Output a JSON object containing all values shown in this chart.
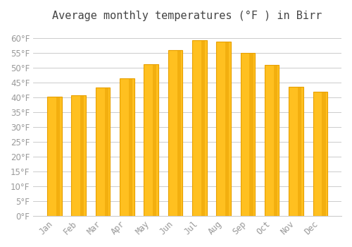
{
  "title": "Average monthly temperatures (°F ) in Birr",
  "months": [
    "Jan",
    "Feb",
    "Mar",
    "Apr",
    "May",
    "Jun",
    "Jul",
    "Aug",
    "Sep",
    "Oct",
    "Nov",
    "Dec"
  ],
  "values": [
    40.1,
    40.6,
    43.3,
    46.4,
    51.1,
    55.9,
    59.2,
    58.6,
    54.9,
    50.9,
    43.5,
    41.9
  ],
  "bar_color": "#FFC020",
  "bar_edge_color": "#E8A000",
  "background_color": "#FFFFFF",
  "grid_color": "#CCCCCC",
  "text_color": "#999999",
  "ylim": [
    0,
    63
  ],
  "yticks": [
    0,
    5,
    10,
    15,
    20,
    25,
    30,
    35,
    40,
    45,
    50,
    55,
    60
  ],
  "title_fontsize": 11,
  "tick_fontsize": 8.5,
  "font_family": "monospace"
}
